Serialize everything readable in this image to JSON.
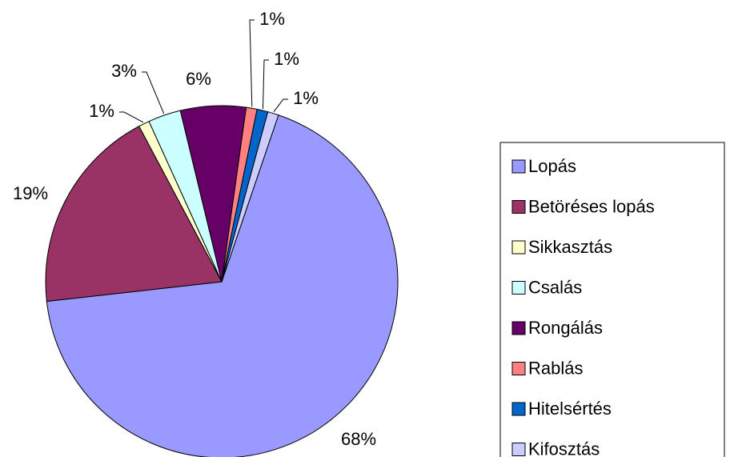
{
  "chart_data": {
    "type": "pie",
    "categories": [
      "Lopás",
      "Betöréses lopás",
      "Sikkasztás",
      "Csalás",
      "Rongálás",
      "Rablás",
      "Hitelsértés",
      "Kifosztás"
    ],
    "values": [
      68,
      19,
      1,
      3,
      6,
      1,
      1,
      1
    ],
    "value_labels": [
      "68%",
      "19%",
      "1%",
      "3%",
      "6%",
      "1%",
      "1%",
      "1%"
    ],
    "colors": [
      "#9999ff",
      "#993366",
      "#ffffcc",
      "#ccffff",
      "#660066",
      "#ff8080",
      "#0066cc",
      "#ccccff"
    ],
    "legend": "right"
  }
}
